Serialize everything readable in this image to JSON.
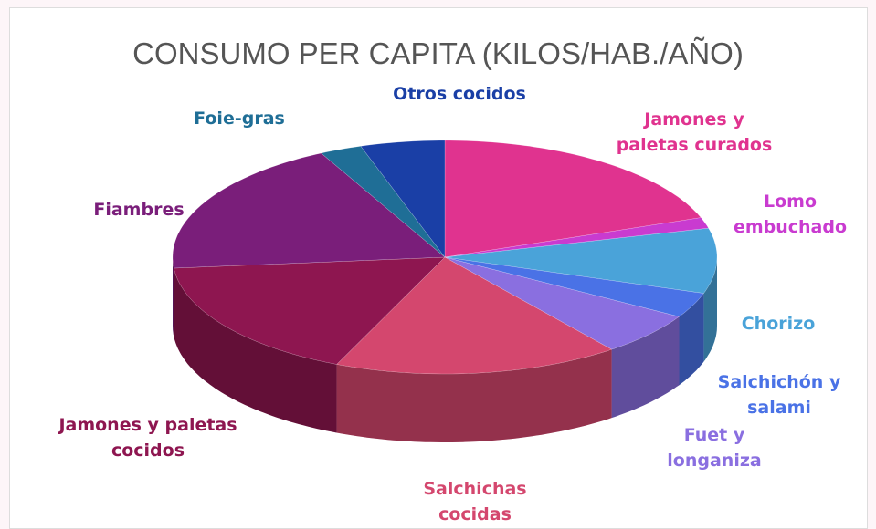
{
  "chart_data": {
    "type": "pie",
    "title": "CONSUMO PER CAPITA (KILOS/HAB./AÑO)",
    "categories": [
      "Jamones y paletas curados",
      "Lomo embuchado",
      "Chorizo",
      "Salchichón y salami",
      "Fuet y longaniza",
      "Salchichas cocidas",
      "Jamones y paletas cocidos",
      "Fiambres",
      "Foie-gras",
      "Otros cocidos"
    ],
    "values": [
      19.5,
      1.5,
      9,
      3.5,
      6,
      17,
      17,
      19,
      2.5,
      5
    ],
    "colors": [
      "#e0338f",
      "#c93bd0",
      "#4aa3d9",
      "#4a72e6",
      "#8a6fe0",
      "#d4476e",
      "#8e1650",
      "#7a1e7a",
      "#1f6e96",
      "#1a3fa6"
    ]
  }
}
